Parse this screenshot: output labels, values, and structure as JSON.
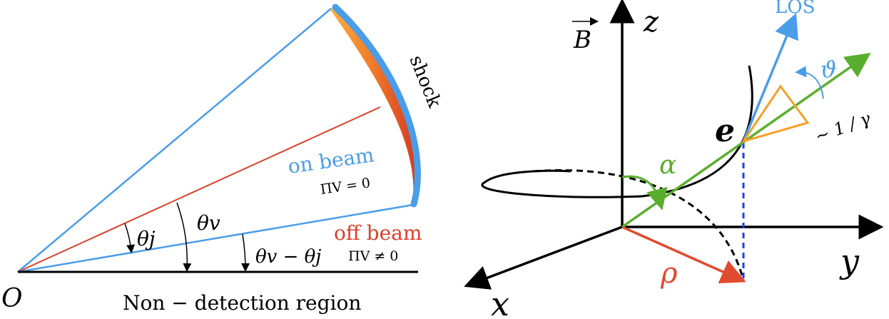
{
  "left_panel": {
    "origin_label": "O",
    "region_label": "Non − detection region",
    "shock_label": "shock",
    "on_beam": {
      "label": "on beam",
      "formula": "ΠV = 0"
    },
    "off_beam": {
      "label": "off beam",
      "formula": "ΠV ≠ 0"
    },
    "angles": {
      "theta_j": "θj",
      "theta_v": "θv",
      "theta_v_minus_j": "θv − θj"
    },
    "colors": {
      "blue": "#4a9de8",
      "red": "#d9402b",
      "black": "#000000"
    }
  },
  "right_panel": {
    "axes": {
      "x": "x",
      "y": "y",
      "z": "z"
    },
    "b_field_label": "B",
    "los_label": "LOS",
    "theta_label": "ϑ",
    "alpha_label": "α",
    "rho_label": "ρ",
    "electron_label": "e",
    "cone_label": "~ 1 / γ",
    "colors": {
      "green": "#5aae2e",
      "orange": "#f5a02a",
      "blue": "#4a9de8",
      "red": "#e04a2e",
      "dashed_blue": "#1f3ff0"
    }
  }
}
